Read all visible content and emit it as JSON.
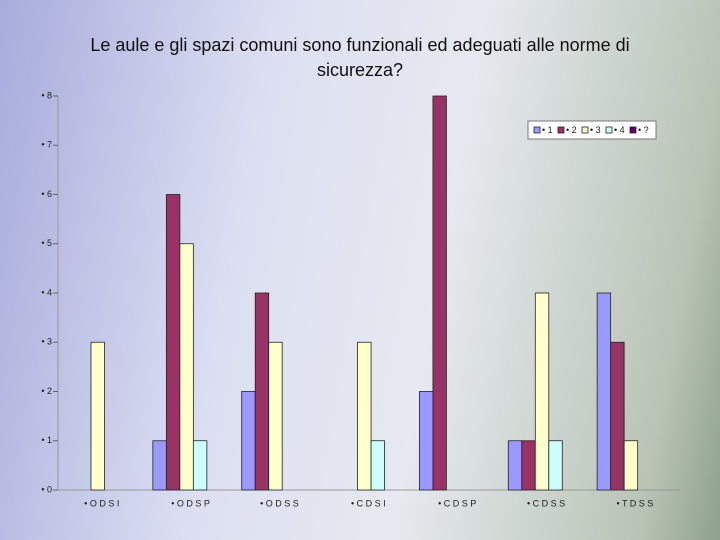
{
  "chart_data": {
    "type": "bar",
    "title": "Le aule e gli spazi comuni sono funzionali ed adeguati alle norme di sicurezza?",
    "categories": [
      "• O D S I",
      "• O D S P",
      "• O D S S",
      "• C D S I",
      "• C D S P",
      "• C D S S",
      "• T D S S"
    ],
    "series": [
      {
        "name": "• 1",
        "color": "#9999ff",
        "values": [
          0,
          1,
          2,
          0,
          2,
          1,
          4
        ]
      },
      {
        "name": "• 2",
        "color": "#993366",
        "values": [
          0,
          6,
          4,
          0,
          8,
          1,
          3
        ]
      },
      {
        "name": "• 3",
        "color": "#ffffcc",
        "values": [
          3,
          5,
          3,
          3,
          0,
          4,
          1
        ]
      },
      {
        "name": "• 4",
        "color": "#ccffff",
        "values": [
          0,
          1,
          0,
          1,
          0,
          1,
          0
        ]
      },
      {
        "name": "• ?",
        "color": "#660066",
        "values": [
          0,
          0,
          0,
          0,
          0,
          0,
          0
        ]
      }
    ],
    "ylim": [
      0,
      8
    ],
    "yticks": [
      {
        "value": 0,
        "label": "• 0"
      },
      {
        "value": 1,
        "label": "• 1"
      },
      {
        "value": 2,
        "label": "• 2"
      },
      {
        "value": 3,
        "label": "• 3"
      },
      {
        "value": 4,
        "label": "• 4"
      },
      {
        "value": 5,
        "label": "• 5"
      },
      {
        "value": 6,
        "label": "• 6"
      },
      {
        "value": 7,
        "label": "• 7"
      },
      {
        "value": 8,
        "label": "• 8"
      }
    ],
    "legend": "top-right"
  }
}
